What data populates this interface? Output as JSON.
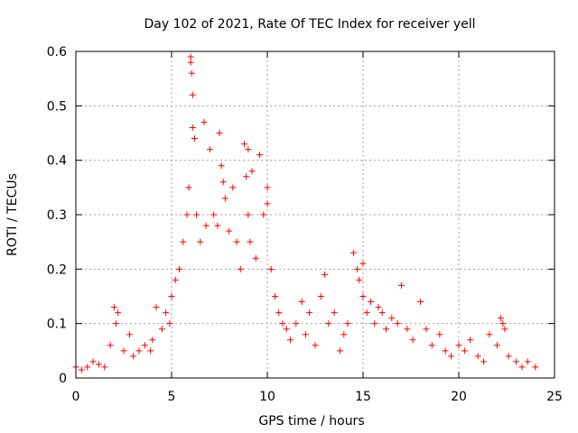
{
  "chart_data": {
    "type": "scatter",
    "title": "Day 102 of 2021, Rate Of TEC Index for receiver yell",
    "xlabel": "GPS time / hours",
    "ylabel": "ROTI / TECUs",
    "xlim": [
      0,
      25
    ],
    "ylim": [
      0,
      0.6
    ],
    "xticks": [
      0,
      5,
      10,
      15,
      20,
      25
    ],
    "xtick_labels": [
      "0",
      "5",
      "10",
      "15",
      "20",
      "25"
    ],
    "yticks": [
      0,
      0.1,
      0.2,
      0.3,
      0.4,
      0.5,
      0.6
    ],
    "ytick_labels": [
      "0",
      "0.1",
      "0.2",
      "0.3",
      "0.4",
      "0.5",
      "0.6"
    ],
    "grid": true,
    "marker": "plus",
    "color": "#ff0000",
    "series": [
      {
        "x": [
          0.0,
          0.3,
          0.6,
          0.9,
          1.2,
          1.5,
          1.8,
          2.0,
          2.1,
          2.2,
          2.5,
          2.8,
          3.0,
          3.3,
          3.6,
          3.9,
          4.0,
          4.2,
          4.5,
          4.7,
          4.9,
          5.0,
          5.2,
          5.4,
          5.6,
          5.8,
          5.9,
          6.0,
          6.0,
          6.05,
          6.1,
          6.1,
          6.2,
          6.3,
          6.5,
          6.7,
          6.8,
          7.0,
          7.2,
          7.4,
          7.5,
          7.6,
          7.7,
          7.8,
          8.0,
          8.2,
          8.4,
          8.6,
          8.8,
          8.9,
          9.0,
          9.0,
          9.1,
          9.2,
          9.4,
          9.6,
          9.8,
          10.0,
          10.0,
          10.2,
          10.4,
          10.6,
          10.8,
          11.0,
          11.2,
          11.5,
          11.8,
          12.0,
          12.2,
          12.5,
          12.8,
          13.0,
          13.2,
          13.5,
          13.8,
          14.0,
          14.2,
          14.5,
          14.7,
          14.8,
          15.0,
          15.0,
          15.2,
          15.4,
          15.6,
          15.8,
          16.0,
          16.2,
          16.5,
          16.8,
          17.0,
          17.3,
          17.6,
          18.0,
          18.3,
          18.6,
          19.0,
          19.3,
          19.6,
          20.0,
          20.3,
          20.6,
          21.0,
          21.3,
          21.6,
          22.0,
          22.2,
          22.3,
          22.4,
          22.6,
          23.0,
          23.3,
          23.6,
          24.0
        ],
        "y": [
          0.02,
          0.015,
          0.02,
          0.03,
          0.025,
          0.02,
          0.06,
          0.13,
          0.1,
          0.12,
          0.05,
          0.08,
          0.04,
          0.05,
          0.06,
          0.05,
          0.07,
          0.13,
          0.09,
          0.12,
          0.1,
          0.15,
          0.18,
          0.2,
          0.25,
          0.3,
          0.35,
          0.59,
          0.58,
          0.56,
          0.52,
          0.46,
          0.44,
          0.3,
          0.25,
          0.47,
          0.28,
          0.42,
          0.3,
          0.28,
          0.45,
          0.39,
          0.36,
          0.33,
          0.27,
          0.35,
          0.25,
          0.2,
          0.43,
          0.37,
          0.42,
          0.3,
          0.25,
          0.38,
          0.22,
          0.41,
          0.3,
          0.35,
          0.32,
          0.2,
          0.15,
          0.12,
          0.1,
          0.09,
          0.07,
          0.1,
          0.14,
          0.08,
          0.12,
          0.06,
          0.15,
          0.19,
          0.1,
          0.12,
          0.05,
          0.08,
          0.1,
          0.23,
          0.2,
          0.18,
          0.21,
          0.15,
          0.12,
          0.14,
          0.1,
          0.13,
          0.12,
          0.09,
          0.11,
          0.1,
          0.17,
          0.09,
          0.07,
          0.14,
          0.09,
          0.06,
          0.08,
          0.05,
          0.04,
          0.06,
          0.05,
          0.07,
          0.04,
          0.03,
          0.08,
          0.06,
          0.11,
          0.1,
          0.09,
          0.04,
          0.03,
          0.02,
          0.03,
          0.02
        ]
      }
    ]
  }
}
